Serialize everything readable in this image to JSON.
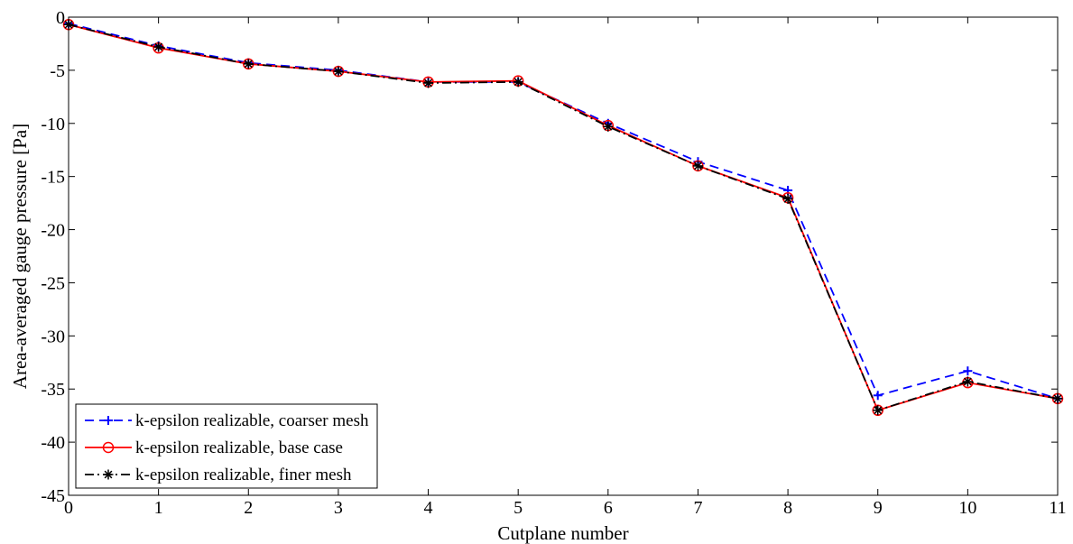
{
  "chart_data": {
    "type": "line",
    "title": "",
    "xlabel": "Cutplane number",
    "ylabel": "Area-averaged gauge pressure [Pa]",
    "xlim": [
      0,
      11
    ],
    "ylim": [
      -45,
      0
    ],
    "xticks": [
      0,
      1,
      2,
      3,
      4,
      5,
      6,
      7,
      8,
      9,
      10,
      11
    ],
    "yticks": [
      0,
      -5,
      -10,
      -15,
      -20,
      -25,
      -30,
      -35,
      -40,
      -45
    ],
    "grid": false,
    "legend_position": "bottom-left",
    "x": [
      0,
      1,
      2,
      3,
      4,
      5,
      6,
      7,
      8,
      9,
      10,
      11
    ],
    "series": [
      {
        "name": "k-epsilon realizable, coarser mesh",
        "color": "#0000ff",
        "line_style": "dashed",
        "marker": "plus",
        "values": [
          -0.6,
          -2.7,
          -4.3,
          -5.0,
          -6.1,
          -6.1,
          -10.0,
          -13.6,
          -16.3,
          -35.6,
          -33.3,
          -35.9
        ]
      },
      {
        "name": "k-epsilon realizable, base case",
        "color": "#ff0000",
        "line_style": "solid",
        "marker": "circle",
        "values": [
          -0.7,
          -2.9,
          -4.4,
          -5.1,
          -6.1,
          -6.0,
          -10.2,
          -14.0,
          -17.0,
          -37.0,
          -34.4,
          -35.9
        ]
      },
      {
        "name": "k-epsilon realizable, finer mesh",
        "color": "#000000",
        "line_style": "dashdot",
        "marker": "asterisk",
        "values": [
          -0.7,
          -2.8,
          -4.4,
          -5.1,
          -6.2,
          -6.1,
          -10.3,
          -14.0,
          -17.1,
          -37.0,
          -34.3,
          -35.9
        ]
      }
    ]
  }
}
